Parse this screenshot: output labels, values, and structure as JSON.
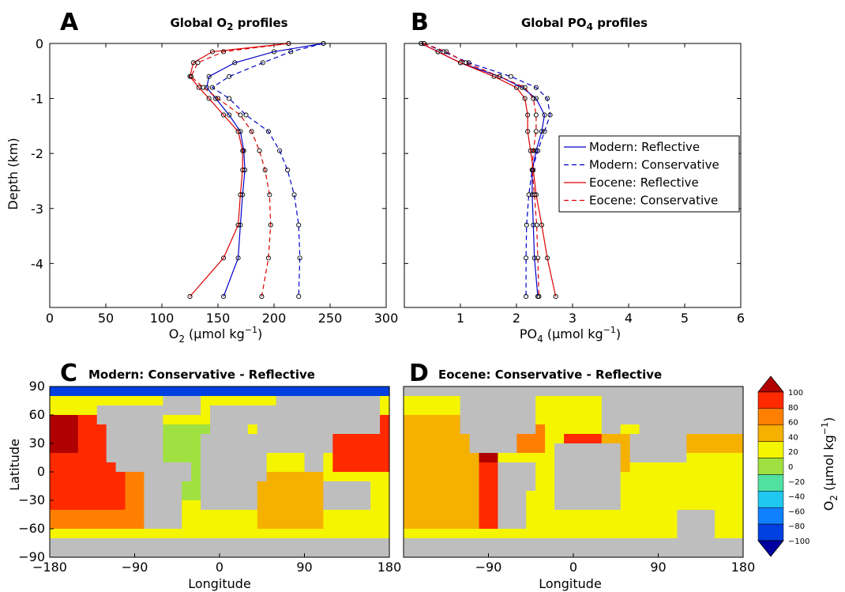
{
  "chart_data": [
    {
      "id": "A",
      "type": "line",
      "panel_letter": "A",
      "title_main": "Global O",
      "title_sub": "2",
      "title_tail": " profiles",
      "xlabel_main": "O",
      "xlabel_sub": "2",
      "xlabel_tail": " (μmol kg",
      "xlabel_sup": "−1",
      "xlabel_end": ")",
      "ylabel": "Depth (km)",
      "xlim": [
        0,
        300
      ],
      "ylim": [
        -4.8,
        0
      ],
      "xticks": [
        "0",
        "50",
        "100",
        "150",
        "200",
        "250",
        "300"
      ],
      "yticks": [
        "0",
        "-1",
        "-2",
        "-3",
        "-4"
      ],
      "series": [
        {
          "name": "Modern: Reflective",
          "color": "#0000cc",
          "dash": "none",
          "x": [
            244,
            200,
            165,
            142,
            140,
            148,
            160,
            170,
            173,
            174,
            172,
            170,
            168,
            155
          ],
          "y": [
            0,
            -0.15,
            -0.35,
            -0.6,
            -0.8,
            -1.0,
            -1.3,
            -1.6,
            -1.95,
            -2.3,
            -2.75,
            -3.3,
            -3.9,
            -4.6
          ]
        },
        {
          "name": "Modern: Conservative",
          "color": "#0000cc",
          "dash": "6,4",
          "x": [
            244,
            215,
            190,
            160,
            145,
            160,
            175,
            195,
            205,
            212,
            218,
            222,
            223,
            222
          ],
          "y": [
            0,
            -0.15,
            -0.35,
            -0.6,
            -0.8,
            -1.0,
            -1.3,
            -1.6,
            -1.95,
            -2.3,
            -2.75,
            -3.3,
            -3.9,
            -4.6
          ]
        },
        {
          "name": "Eocene: Reflective",
          "color": "#dd0000",
          "dash": "none",
          "x": [
            213,
            145,
            128,
            125,
            133,
            142,
            155,
            168,
            172,
            172,
            170,
            168,
            155,
            125
          ],
          "y": [
            0,
            -0.15,
            -0.35,
            -0.6,
            -0.8,
            -1.0,
            -1.3,
            -1.6,
            -1.95,
            -2.3,
            -2.75,
            -3.3,
            -3.9,
            -4.6
          ]
        },
        {
          "name": "Eocene: Conservative",
          "color": "#dd0000",
          "dash": "6,4",
          "x": [
            213,
            155,
            132,
            126,
            137,
            150,
            170,
            180,
            187,
            192,
            196,
            197,
            195,
            189
          ],
          "y": [
            0,
            -0.15,
            -0.35,
            -0.6,
            -0.8,
            -1.0,
            -1.3,
            -1.6,
            -1.95,
            -2.3,
            -2.75,
            -3.3,
            -3.9,
            -4.6
          ]
        }
      ]
    },
    {
      "id": "B",
      "type": "line",
      "panel_letter": "B",
      "title_main": "Global PO",
      "title_sub": "4",
      "title_tail": " profiles",
      "xlabel_main": "PO",
      "xlabel_sub": "4",
      "xlabel_tail": " (μmol kg",
      "xlabel_sup": "−1",
      "xlabel_end": ")",
      "xlim": [
        0,
        6
      ],
      "ylim": [
        -4.8,
        0
      ],
      "xticks": [
        "1",
        "2",
        "3",
        "4",
        "5",
        "6"
      ],
      "xtick_values": [
        1,
        2,
        3,
        4,
        5,
        6
      ],
      "legend_position": "right",
      "series": [
        {
          "name": "Modern: Reflective",
          "color": "#0000cc",
          "dash": "none",
          "x": [
            0.3,
            0.6,
            1.0,
            1.7,
            2.1,
            2.35,
            2.5,
            2.45,
            2.35,
            2.28,
            2.28,
            2.3,
            2.32,
            2.38
          ],
          "y": [
            0,
            -0.15,
            -0.35,
            -0.6,
            -0.8,
            -1.0,
            -1.3,
            -1.6,
            -1.95,
            -2.3,
            -2.75,
            -3.3,
            -3.9,
            -4.6
          ]
        },
        {
          "name": "Modern: Conservative",
          "color": "#0000cc",
          "dash": "6,4",
          "x": [
            0.35,
            0.7,
            1.15,
            1.9,
            2.35,
            2.55,
            2.6,
            2.5,
            2.38,
            2.28,
            2.22,
            2.18,
            2.17,
            2.17
          ],
          "y": [
            0,
            -0.15,
            -0.35,
            -0.6,
            -0.8,
            -1.0,
            -1.3,
            -1.6,
            -1.95,
            -2.3,
            -2.75,
            -3.3,
            -3.9,
            -4.6
          ]
        },
        {
          "name": "Eocene: Reflective",
          "color": "#dd0000",
          "dash": "none",
          "x": [
            0.3,
            0.6,
            1.0,
            1.6,
            2.0,
            2.15,
            2.2,
            2.2,
            2.25,
            2.3,
            2.35,
            2.45,
            2.55,
            2.7
          ],
          "y": [
            0,
            -0.15,
            -0.35,
            -0.6,
            -0.8,
            -1.0,
            -1.3,
            -1.6,
            -1.95,
            -2.3,
            -2.75,
            -3.3,
            -3.9,
            -4.6
          ]
        },
        {
          "name": "Eocene: Conservative",
          "color": "#dd0000",
          "dash": "6,4",
          "x": [
            0.35,
            0.75,
            1.1,
            1.7,
            2.15,
            2.3,
            2.35,
            2.35,
            2.3,
            2.28,
            2.32,
            2.36,
            2.38,
            2.4
          ],
          "y": [
            0,
            -0.15,
            -0.35,
            -0.6,
            -0.8,
            -1.0,
            -1.3,
            -1.6,
            -1.95,
            -2.3,
            -2.75,
            -3.3,
            -3.9,
            -4.6
          ]
        }
      ]
    },
    {
      "id": "C",
      "type": "heatmap",
      "panel_letter": "C",
      "title": "Modern: Conservative - Reflective",
      "xlabel": "Longitude",
      "ylabel": "Latitude",
      "xlim": [
        -180,
        180
      ],
      "ylim": [
        -90,
        90
      ],
      "xticks": [
        "−180",
        "−90",
        "0",
        "90",
        "180"
      ],
      "xtick_values": [
        -180,
        -90,
        0,
        90,
        180
      ],
      "yticks": [
        "90",
        "60",
        "30",
        "0",
        "−30",
        "−60",
        "−90"
      ],
      "ytick_values": [
        90,
        60,
        30,
        0,
        -30,
        -60,
        -90
      ]
    },
    {
      "id": "D",
      "type": "heatmap",
      "panel_letter": "D",
      "title": "Eocene: Conservative - Reflective",
      "xlabel": "Longitude",
      "xlim": [
        -180,
        180
      ],
      "ylim": [
        -90,
        90
      ],
      "xticks": [
        "−90",
        "0",
        "90",
        "180"
      ],
      "xtick_values": [
        -90,
        0,
        90,
        180
      ]
    }
  ],
  "colorbar": {
    "label_main": "O",
    "label_sub": "2",
    "label_tail": " (μmol kg",
    "label_sup": "−1",
    "label_end": ")",
    "ticks": [
      "100",
      "80",
      "60",
      "40",
      "20",
      "0",
      "−20",
      "−40",
      "−60",
      "−80",
      "−100"
    ],
    "colors": [
      "#b00000",
      "#ff2a00",
      "#ff8000",
      "#f5b000",
      "#f5f500",
      "#a0e040",
      "#50e0a0",
      "#20c8f0",
      "#1080ff",
      "#0040e0",
      "#0000a0"
    ],
    "land_color": "#bebebe"
  }
}
